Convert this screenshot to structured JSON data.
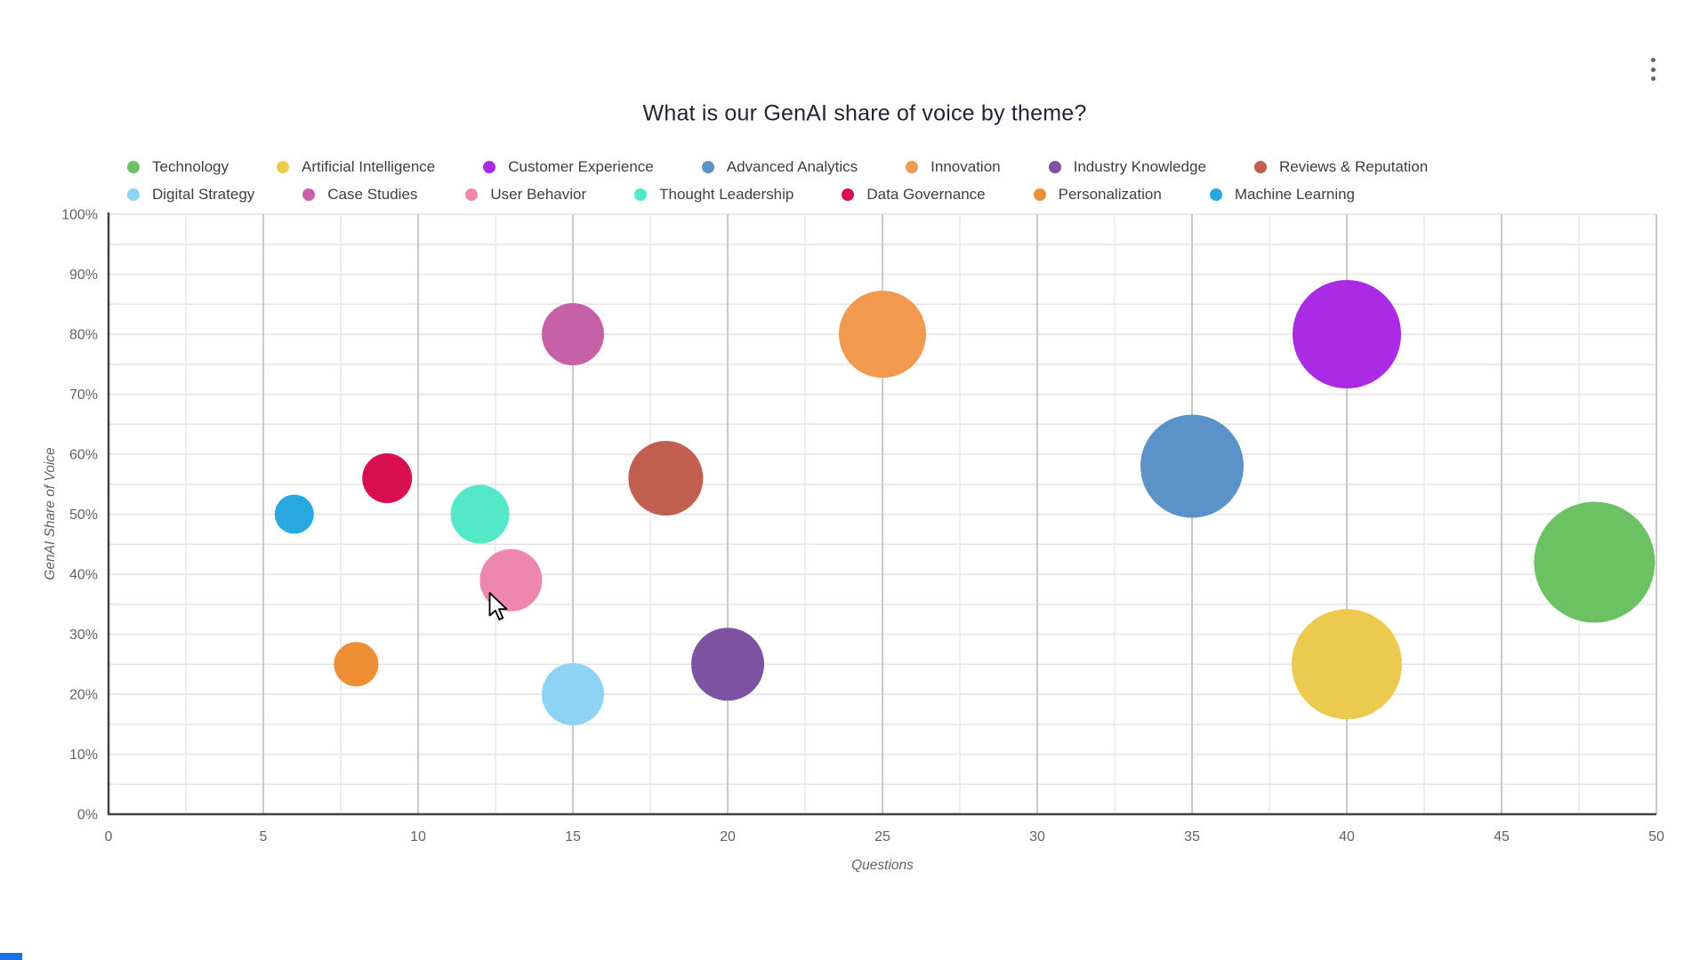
{
  "page": {
    "title": "What is our GenAI share of voice by theme?",
    "icons": {
      "menu": "kebab-menu-icon",
      "cursor": "mouse-arrow"
    }
  },
  "chart_data": {
    "type": "scatter",
    "subtype": "bubble",
    "title": "What is our GenAI share of voice by theme?",
    "xlabel": "Questions",
    "ylabel": "GenAI Share of Voice",
    "xlim": [
      0,
      50
    ],
    "ylim": [
      0,
      100
    ],
    "grid": true,
    "legend_position": "top",
    "x_axis_ticks": [
      0,
      5,
      10,
      15,
      20,
      25,
      30,
      35,
      40,
      45,
      50
    ],
    "y_axis_ticks": [
      "0%",
      "10%",
      "20%",
      "30%",
      "40%",
      "50%",
      "60%",
      "70%",
      "80%",
      "90%",
      "100%"
    ],
    "series": [
      {
        "name": "Technology",
        "x": 48,
        "y": 42,
        "bubble_radius_px": 68,
        "color": "#6cc162"
      },
      {
        "name": "Artificial Intelligence",
        "x": 40,
        "y": 25,
        "bubble_radius_px": 62,
        "color": "#ecc94f"
      },
      {
        "name": "Customer Experience",
        "x": 40,
        "y": 80,
        "bubble_radius_px": 61,
        "color": "#aa2be3"
      },
      {
        "name": "Advanced Analytics",
        "x": 35,
        "y": 58,
        "bubble_radius_px": 58,
        "color": "#5b92c8"
      },
      {
        "name": "Innovation",
        "x": 25,
        "y": 80,
        "bubble_radius_px": 49,
        "color": "#f0994f"
      },
      {
        "name": "Industry Knowledge",
        "x": 20,
        "y": 25,
        "bubble_radius_px": 41,
        "color": "#7d52a1"
      },
      {
        "name": "Reviews & Reputation",
        "x": 18,
        "y": 56,
        "bubble_radius_px": 42,
        "color": "#c05e50"
      },
      {
        "name": "Digital Strategy",
        "x": 15,
        "y": 20,
        "bubble_radius_px": 35,
        "color": "#8ed3f4"
      },
      {
        "name": "Case Studies",
        "x": 15,
        "y": 80,
        "bubble_radius_px": 35,
        "color": "#c661a8"
      },
      {
        "name": "User Behavior",
        "x": 13,
        "y": 39,
        "bubble_radius_px": 35,
        "color": "#ee87ae"
      },
      {
        "name": "Thought Leadership",
        "x": 12,
        "y": 50,
        "bubble_radius_px": 33,
        "color": "#52e8c8"
      },
      {
        "name": "Data Governance",
        "x": 9,
        "y": 56,
        "bubble_radius_px": 28,
        "color": "#d70f4f"
      },
      {
        "name": "Personalization",
        "x": 8,
        "y": 25,
        "bubble_radius_px": 25,
        "color": "#ef8f35"
      },
      {
        "name": "Machine Learning",
        "x": 6,
        "y": 50,
        "bubble_radius_px": 22,
        "color": "#29a8e0"
      }
    ],
    "legend_rows": [
      [
        0,
        1,
        2,
        3,
        4,
        5,
        6
      ],
      [
        7,
        8,
        9,
        10,
        11,
        12,
        13
      ]
    ]
  }
}
